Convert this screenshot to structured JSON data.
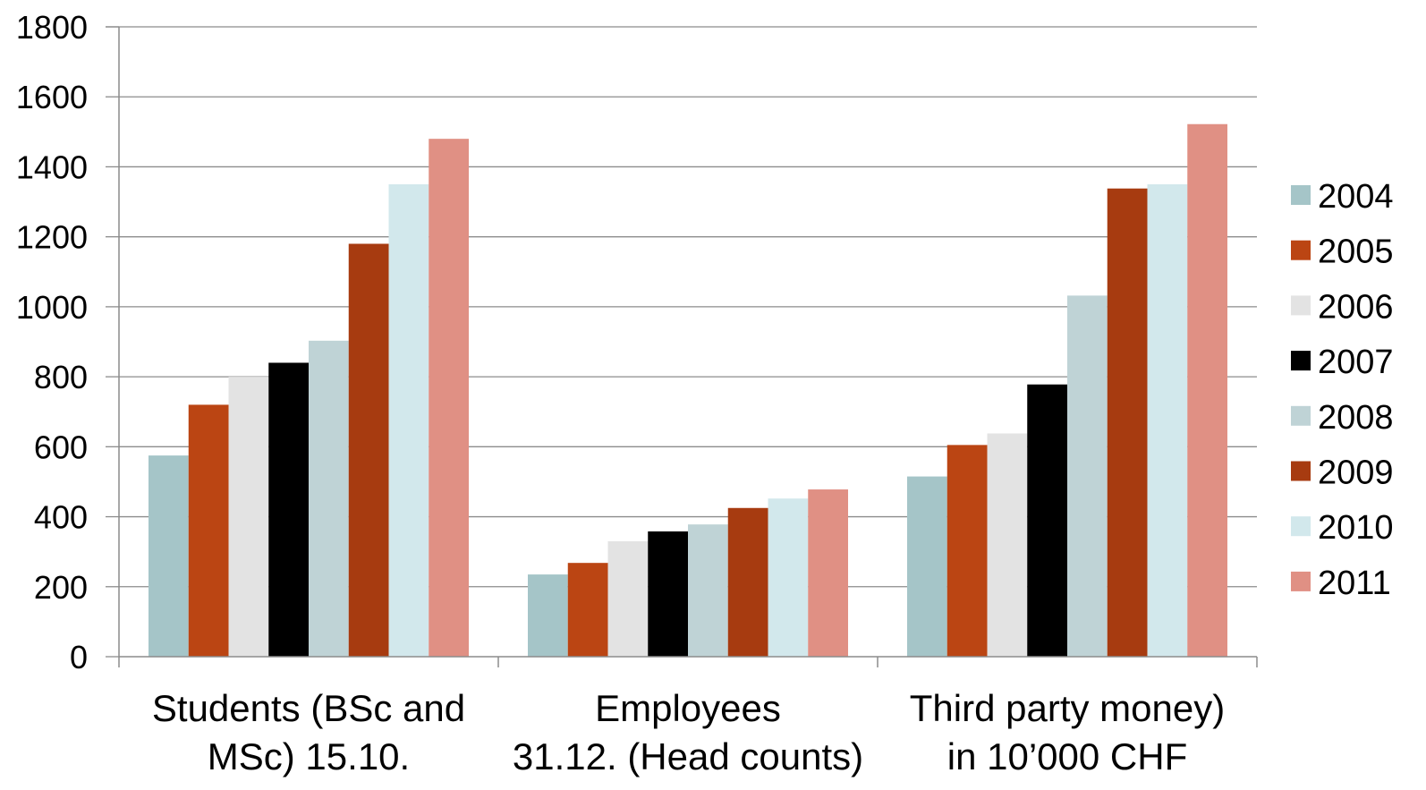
{
  "chart_data": {
    "type": "bar",
    "title": "",
    "xlabel": "",
    "ylabel": "",
    "ylim": [
      0,
      1800
    ],
    "yticks": [
      0,
      200,
      400,
      600,
      800,
      1000,
      1200,
      1400,
      1600,
      1800
    ],
    "grid": "horizontal",
    "legend_position": "right",
    "categories": [
      [
        "Students (BSc and",
        "MSc) 15.10."
      ],
      [
        "Employees",
        "31.12. (Head counts)"
      ],
      [
        "Third party money)",
        "in 10’000 CHF"
      ]
    ],
    "series": [
      {
        "name": "2004",
        "color": "#a5c5c8",
        "values": [
          575,
          235,
          515
        ]
      },
      {
        "name": "2005",
        "color": "#bb4513",
        "values": [
          720,
          268,
          605
        ]
      },
      {
        "name": "2006",
        "color": "#e3e3e3",
        "values": [
          800,
          330,
          638
        ]
      },
      {
        "name": "2007",
        "color": "#000000",
        "values": [
          840,
          358,
          778
        ]
      },
      {
        "name": "2008",
        "color": "#bfd3d6",
        "values": [
          903,
          378,
          1032
        ]
      },
      {
        "name": "2009",
        "color": "#a73b10",
        "values": [
          1180,
          425,
          1338
        ]
      },
      {
        "name": "2010",
        "color": "#d2e8ec",
        "values": [
          1350,
          452,
          1350
        ]
      },
      {
        "name": "2011",
        "color": "#e09084",
        "values": [
          1480,
          478,
          1522
        ]
      }
    ]
  }
}
